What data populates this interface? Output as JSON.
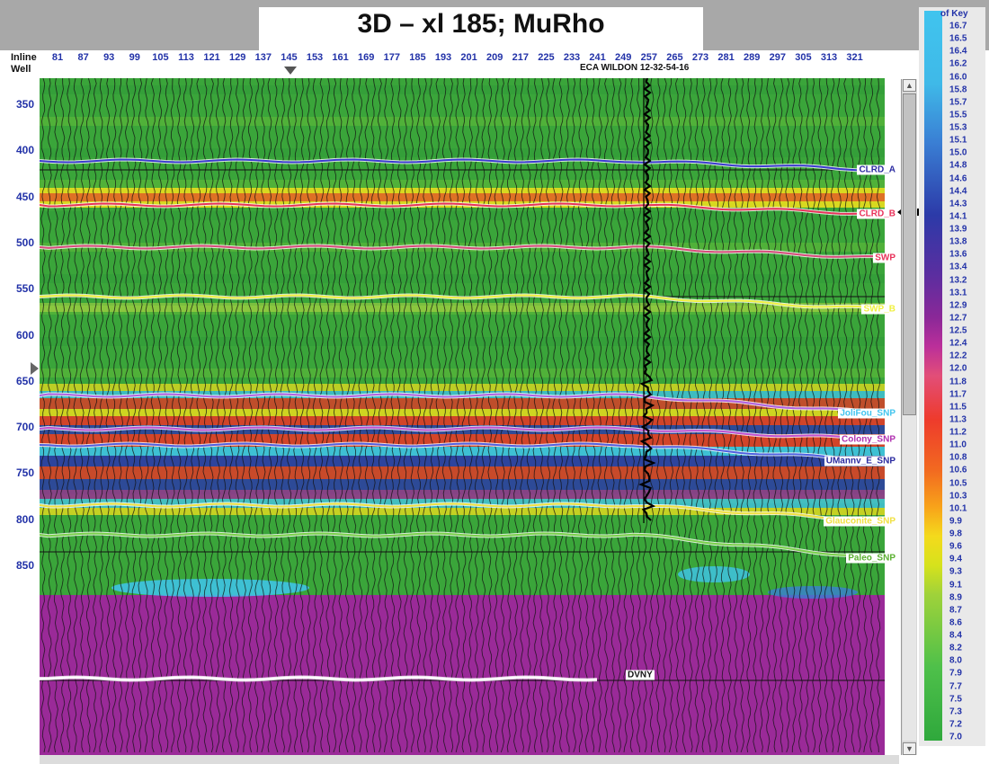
{
  "title": "3D – xl 185; MuRho",
  "header": {
    "inline_label": "Inline",
    "well_label": "Well"
  },
  "inline_ticks": [
    "81",
    "87",
    "93",
    "99",
    "105",
    "113",
    "121",
    "129",
    "137",
    "145",
    "153",
    "161",
    "169",
    "177",
    "185",
    "193",
    "201",
    "209",
    "217",
    "225",
    "233",
    "241",
    "249",
    "257",
    "265",
    "273",
    "281",
    "289",
    "297",
    "305",
    "313",
    "321"
  ],
  "time_ticks": [
    "350",
    "400",
    "450",
    "500",
    "550",
    "600",
    "650",
    "700",
    "750",
    "800",
    "850"
  ],
  "well": {
    "name": "ECA WILDON 12-32-54-16"
  },
  "horizons": [
    {
      "name": "CLRD_A",
      "color": "#3a3ad0",
      "label_color": "#2a2aa0",
      "label_bg": "#ffffff"
    },
    {
      "name": "CLRD_B",
      "color": "#e8325a",
      "label_color": "#e8325a",
      "label_bg": "#ffffff"
    },
    {
      "name": "SWP",
      "color": "#d84a7a",
      "label_color": "#e8325a",
      "label_bg": "#ffffff"
    },
    {
      "name": "SWP_B",
      "color": "#f0f040",
      "label_color": "#f0f040",
      "label_bg": "#ffffff"
    },
    {
      "name": "JoliFou_SNP",
      "color": "#b060e0",
      "label_color": "#40c4ee",
      "label_bg": "#ffffff"
    },
    {
      "name": "Colony_SNP",
      "color": "#c050d0",
      "label_color": "#b030b0",
      "label_bg": "#ffffff"
    },
    {
      "name": "UMannv_E_SNP",
      "color": "#5060e0",
      "label_color": "#2a2aa0",
      "label_bg": "#ffffff"
    },
    {
      "name": "Glauconite_SNP",
      "color": "#f0e040",
      "label_color": "#f0e040",
      "label_bg": "#ffffff"
    },
    {
      "name": "Paleo_SNP",
      "color": "#7ad04a",
      "label_color": "#5ab030",
      "label_bg": "#ffffff"
    },
    {
      "name": "DVNY",
      "color": "#ffffff",
      "label_color": "#111111",
      "label_bg": "#ffffff"
    }
  ],
  "colorbar": {
    "title": "of Key",
    "ticks": [
      "16.7",
      "16.5",
      "16.4",
      "16.2",
      "16.0",
      "15.8",
      "15.7",
      "15.5",
      "15.3",
      "15.1",
      "15.0",
      "14.8",
      "14.6",
      "14.4",
      "14.3",
      "14.1",
      "13.9",
      "13.8",
      "13.6",
      "13.4",
      "13.2",
      "13.1",
      "12.9",
      "12.7",
      "12.5",
      "12.4",
      "12.2",
      "12.0",
      "11.8",
      "11.7",
      "11.5",
      "11.3",
      "11.2",
      "11.0",
      "10.8",
      "10.6",
      "10.5",
      "10.3",
      "10.1",
      "9.9",
      "9.8",
      "9.6",
      "9.4",
      "9.3",
      "9.1",
      "8.9",
      "8.7",
      "8.6",
      "8.4",
      "8.2",
      "8.0",
      "7.9",
      "7.7",
      "7.5",
      "7.3",
      "7.2",
      "7.0"
    ]
  },
  "colors": {
    "green": "#3aa53a",
    "purple": "#9a2a98",
    "red": "#e23a28",
    "yellow": "#f4e01c",
    "cyan": "#40c4ee",
    "blue": "#2c3aa8"
  }
}
